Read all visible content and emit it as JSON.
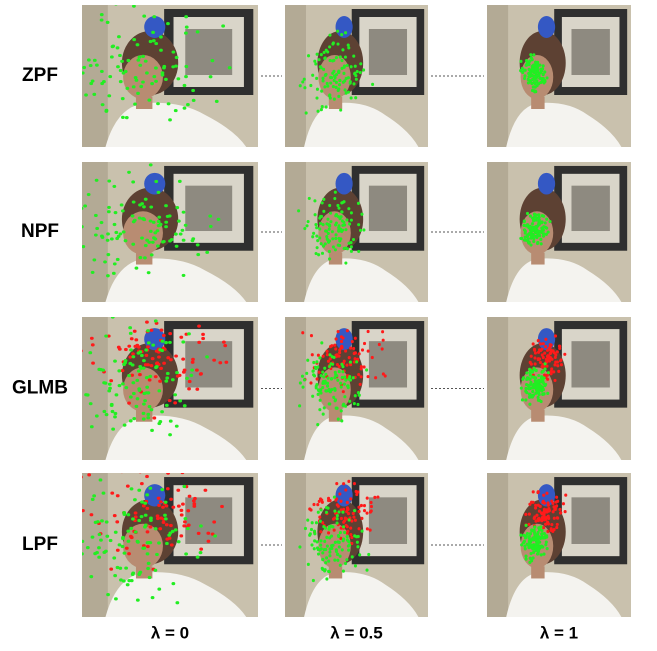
{
  "row_labels": [
    "ZPF",
    "NPF",
    "GLMB",
    "LPF"
  ],
  "column_labels": [
    "λ = 0",
    "λ = 0.5",
    "λ = 1"
  ]
}
